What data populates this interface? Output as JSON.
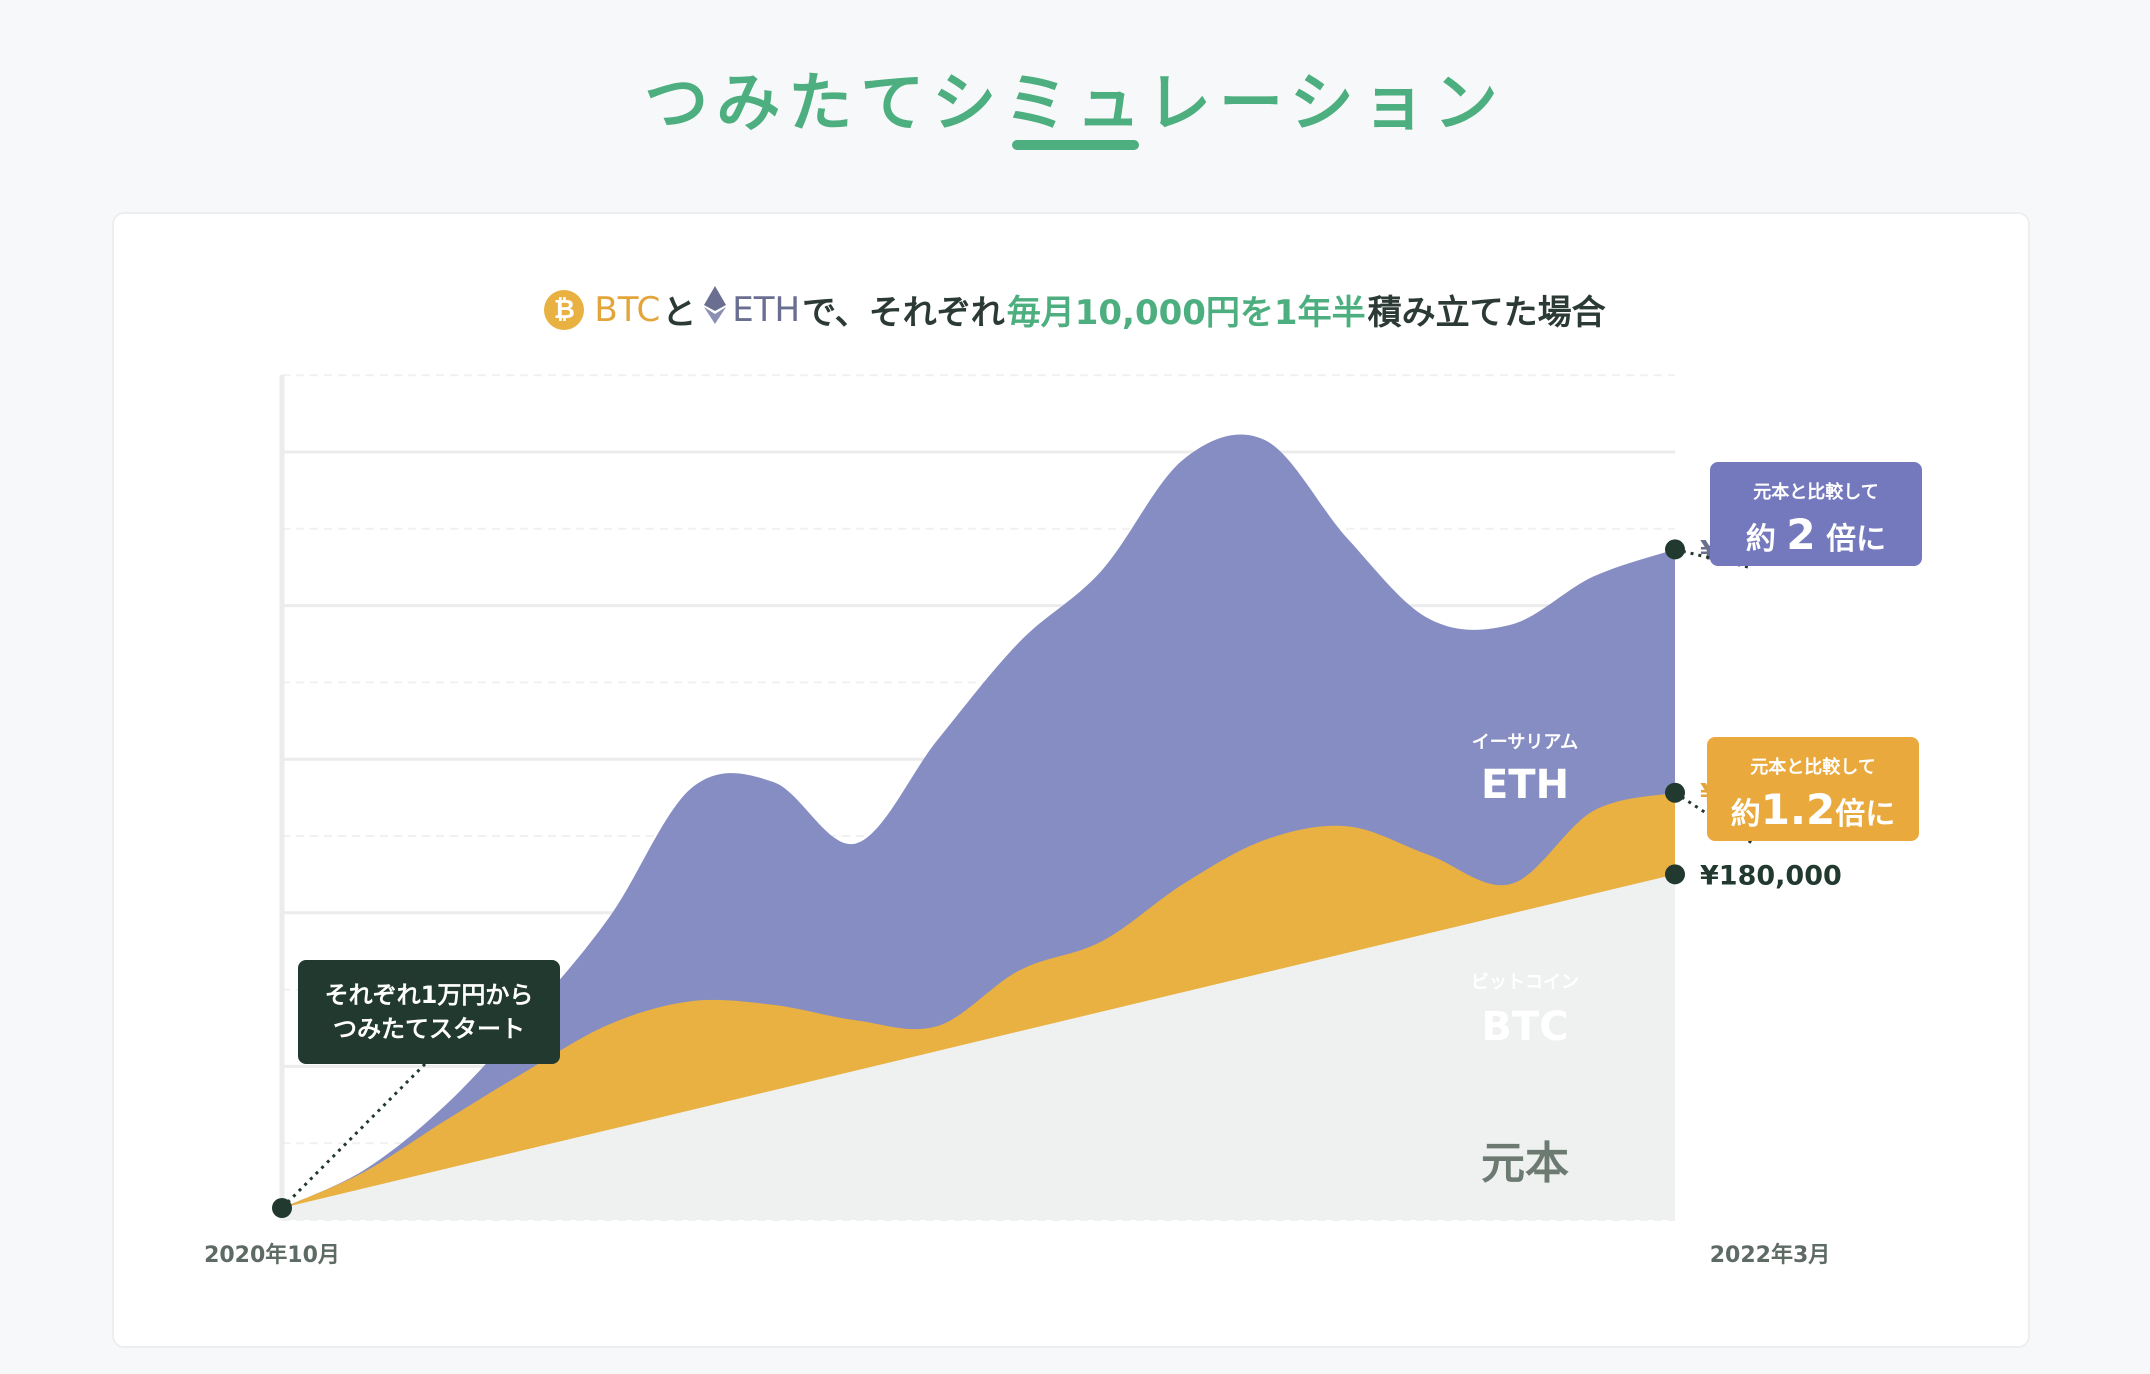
{
  "header": {
    "title": "つみたてシミュレーション"
  },
  "subtitle": {
    "part_btc": "BTC",
    "part_and": "と",
    "part_eth": "ETH",
    "part_mid": "で、それぞれ",
    "part_highlight": "毎月10,000円を1年半",
    "part_end": "積み立てた場合",
    "btc_icon_glyph": "₿"
  },
  "callouts": {
    "eth_small": "元本と比較して",
    "eth_big_pre": "約",
    "eth_big_num": "2",
    "eth_big_post": "倍に",
    "btc_small": "元本と比較して",
    "btc_big_pre": "約",
    "btc_big_num": "1.2",
    "btc_big_post": "倍に",
    "start_line1": "それぞれ1万円から",
    "start_line2": "つみたてスタート"
  },
  "colors": {
    "eth": "#868dc3",
    "btc": "#e9b042",
    "principal": "#eff1f0",
    "accent_green": "#4dae7f",
    "dark": "#22392f"
  },
  "chart_data": {
    "type": "area",
    "stacked": true,
    "x_start_label": "2020年10月",
    "x_end_label": "2022年3月",
    "x": [
      "2020-10",
      "2020-11",
      "2020-12",
      "2021-01",
      "2021-02",
      "2021-03",
      "2021-04",
      "2021-05",
      "2021-06",
      "2021-07",
      "2021-08",
      "2021-09",
      "2021-10",
      "2021-11",
      "2021-12",
      "2022-01",
      "2022-02",
      "2022-03"
    ],
    "ylim": [
      0,
      440000
    ],
    "grid": true,
    "series": [
      {
        "name": "元本",
        "label": "元本",
        "values": [
          10000,
          20000,
          30000,
          40000,
          50000,
          60000,
          70000,
          80000,
          90000,
          100000,
          110000,
          120000,
          130000,
          140000,
          150000,
          160000,
          170000,
          180000
        ]
      },
      {
        "name": "BTC",
        "label_small": "ビットコイン",
        "label": "BTC",
        "values": [
          10000,
          25000,
          52000,
          78000,
          102000,
          114000,
          112000,
          104000,
          101000,
          130000,
          145000,
          175000,
          198000,
          205000,
          190000,
          175000,
          213000,
          222494
        ]
      },
      {
        "name": "ETH",
        "label_small": "イーサリアム",
        "label": "ETH",
        "values": [
          10000,
          26000,
          60000,
          106000,
          158000,
          225000,
          228000,
          196000,
          250000,
          301000,
          338000,
          396000,
          406000,
          355000,
          313000,
          310000,
          335000,
          349189
        ]
      }
    ],
    "end_values": {
      "eth": "¥349,189",
      "btc": "¥222,494",
      "principal": "¥180,000"
    }
  }
}
